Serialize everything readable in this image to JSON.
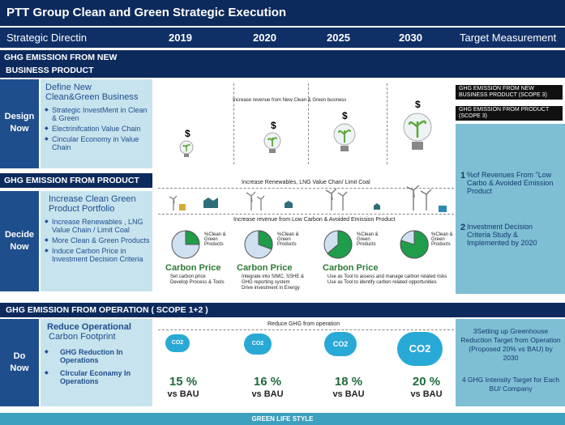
{
  "title": "PTT Group Clean and Green Strategic Execution",
  "header": {
    "strategic": "Strategic Directin",
    "y2019": "2019",
    "y2020": "2020",
    "y2025": "2025",
    "y2030": "2030",
    "target": "Target Measurement"
  },
  "sec1": {
    "bar_line1": "GHG EMISSION FROM NEW",
    "bar_line2": "BUSINESS PRODUCT",
    "label_line1": "Design",
    "label_line2": "Now",
    "head": "Define New Clean&Green Business",
    "items": [
      "Strategic InvestMent in Clean & Green",
      "Electrinifcation Value Chain",
      "Cincular Economy in Value Chain"
    ],
    "timeline": "Increase revenue from New Clean & Green business",
    "tag1": "GHG EMISSION FROM NEW BUSINESS PRODUCT (SCOPE 3)",
    "tag2": "GHG EMISSION FROM PRODUCT (SCOPE 3)",
    "dollar": "$"
  },
  "sec2": {
    "bar": "GHG EMISSION FROM PRODUCT",
    "label_line1": "Decide",
    "label_line2": "Now",
    "head": "Increase Clean Green Product Portfolio",
    "items": [
      "Increase Renewables , LNG Value Chain / Limit Coal",
      "More Clean & Green Products",
      "Induce Carbon Price in Investment Decision Criteria"
    ],
    "timeline1": "Increase Renewables, LNG Value Chan/ Limit Coal",
    "timeline2": "Increase revenue from Low Carbon & Avoided Emission Product",
    "pie_label": "%Clean & Green Products",
    "carbon_price": "Carbon Price",
    "cp1": [
      "Set carbon price",
      "Develop Process & Tools"
    ],
    "cp2": [
      "Integrate into SIMC, SSHE & GHG reporting system",
      "Drive investment in Energy"
    ],
    "cp3": [
      "Use as Tool to assess and manage carbon related risks",
      "Use as Tool to identify carbon related opportunities"
    ],
    "target1_num": "1",
    "target1": "%of Revenues From \"Low Carbo & Avoided Emission Product",
    "target2_num": "2",
    "target2": "Investment Decision Criteria Study & Implemented by 2020"
  },
  "sec3": {
    "bar": "GHG EMISSION FROM OPERATION ( SCOPE 1+2 )",
    "label_line1": "Do",
    "label_line2": "Now",
    "head1": "Reduce Operational",
    "head2": "Carbon Footprint",
    "items": [
      "GHG Reduction In Operations",
      "Clrcular Econamy In Operations"
    ],
    "timeline": "Reduce GHG from operation",
    "co2": "CO2",
    "pcts": [
      "15 %",
      "16 %",
      "18 %",
      "20 %"
    ],
    "bau": "vs BAU",
    "target3": "3Setting up Greenhouse Reduction Target from Operation (Proposed 20% vs BAU) by 2030",
    "target4": "4  GHG Intensity Target for Each BU/ Company"
  },
  "footer": "GREEN LIFE STYLE",
  "colors": {
    "navy": "#0d2a5c",
    "accent_blue": "#1f4e8c",
    "light_blue": "#c7e3ee",
    "teal": "#7fbfd4",
    "green": "#2f7b36"
  }
}
